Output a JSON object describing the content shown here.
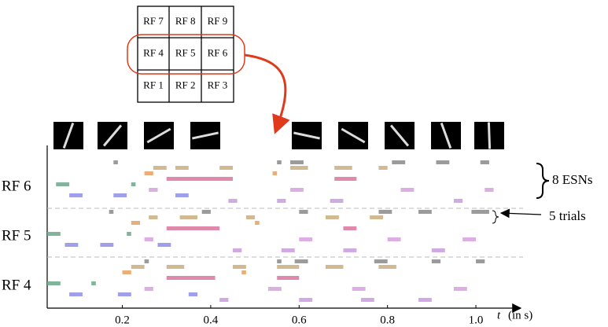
{
  "chart_data": {
    "type": "raster",
    "rf_grid": [
      [
        "RF 7",
        "RF 8",
        "RF 9"
      ],
      [
        "RF 4",
        "RF 5",
        "RF 6"
      ],
      [
        "RF 1",
        "RF 2",
        "RF 3"
      ]
    ],
    "esn_colors": [
      "#8a8a8a",
      "#c9ae7e",
      "#e8a060",
      "#d9749c",
      "#6aa88a",
      "#d6a0df",
      "#8f8fe6",
      "#c89ae0"
    ],
    "sections": [
      {
        "label": "RF 6",
        "bursts": [
          [
            [
              0.18,
              0.19
            ],
            [
              0.55,
              0.56
            ],
            [
              0.58,
              0.61
            ],
            [
              0.81,
              0.84
            ],
            [
              0.91,
              0.94
            ],
            [
              1.01,
              1.03
            ]
          ],
          [
            [
              0.27,
              0.3
            ],
            [
              0.32,
              0.35
            ],
            [
              0.42,
              0.45
            ],
            [
              0.58,
              0.62
            ],
            [
              0.68,
              0.72
            ],
            [
              0.78,
              0.8
            ]
          ],
          [
            [
              0.25,
              0.27
            ],
            [
              0.54,
              0.55
            ]
          ],
          [
            [
              0.3,
              0.45
            ],
            [
              0.68,
              0.73
            ]
          ],
          [
            [
              0.05,
              0.08
            ],
            [
              0.22,
              0.23
            ]
          ],
          [
            [
              0.26,
              0.28
            ],
            [
              0.58,
              0.61
            ],
            [
              0.83,
              0.86
            ],
            [
              1.02,
              1.04
            ]
          ],
          [
            [
              0.08,
              0.11
            ],
            [
              0.18,
              0.21
            ],
            [
              0.32,
              0.35
            ]
          ],
          [
            [
              0.44,
              0.46
            ],
            [
              0.55,
              0.57
            ],
            [
              0.67,
              0.7
            ],
            [
              0.95,
              0.97
            ]
          ]
        ]
      },
      {
        "label": "RF 5",
        "bursts": [
          [
            [
              0.17,
              0.18
            ],
            [
              0.38,
              0.4
            ],
            [
              0.6,
              0.62
            ],
            [
              0.78,
              0.81
            ],
            [
              0.87,
              0.9
            ],
            [
              0.99,
              1.03
            ]
          ],
          [
            [
              0.26,
              0.28
            ],
            [
              0.33,
              0.37
            ],
            [
              0.48,
              0.5
            ],
            [
              0.66,
              0.69
            ],
            [
              0.76,
              0.79
            ]
          ],
          [
            [
              0.22,
              0.24
            ],
            [
              0.5,
              0.51
            ]
          ],
          [
            [
              0.3,
              0.42
            ],
            [
              0.7,
              0.73
            ]
          ],
          [
            [
              0.03,
              0.06
            ],
            [
              0.21,
              0.22
            ]
          ],
          [
            [
              0.25,
              0.27
            ],
            [
              0.6,
              0.63
            ],
            [
              0.8,
              0.83
            ],
            [
              0.97,
              1.0
            ]
          ],
          [
            [
              0.07,
              0.1
            ],
            [
              0.15,
              0.18
            ],
            [
              0.28,
              0.31
            ]
          ],
          [
            [
              0.45,
              0.47
            ],
            [
              0.56,
              0.59
            ],
            [
              0.7,
              0.73
            ],
            [
              0.9,
              0.93
            ]
          ]
        ]
      },
      {
        "label": "RF 4",
        "bursts": [
          [
            [
              0.25,
              0.26
            ],
            [
              0.55,
              0.56
            ],
            [
              0.59,
              0.62
            ],
            [
              0.77,
              0.8
            ],
            [
              0.9,
              0.92
            ],
            [
              1.0,
              1.02
            ]
          ],
          [
            [
              0.22,
              0.25
            ],
            [
              0.3,
              0.34
            ],
            [
              0.45,
              0.48
            ],
            [
              0.55,
              0.6
            ],
            [
              0.66,
              0.7
            ],
            [
              0.78,
              0.82
            ]
          ],
          [
            [
              0.2,
              0.22
            ],
            [
              0.47,
              0.48
            ]
          ],
          [
            [
              0.3,
              0.41
            ],
            [
              0.55,
              0.6
            ]
          ],
          [
            [
              0.03,
              0.06
            ],
            [
              0.13,
              0.14
            ]
          ],
          [
            [
              0.25,
              0.27
            ],
            [
              0.53,
              0.56
            ],
            [
              0.72,
              0.75
            ],
            [
              0.95,
              0.98
            ]
          ],
          [
            [
              0.08,
              0.11
            ],
            [
              0.19,
              0.22
            ],
            [
              0.35,
              0.37
            ]
          ],
          [
            [
              0.42,
              0.44
            ],
            [
              0.6,
              0.63
            ],
            [
              0.74,
              0.77
            ],
            [
              0.87,
              0.9
            ]
          ]
        ]
      }
    ],
    "xlim": [
      0.03,
      1.08
    ],
    "xticks": [
      0.2,
      0.4,
      0.6,
      0.8,
      {
        "value": 1,
        "label": "1.0"
      }
    ],
    "xlabel_var": "t",
    "xlabel_unit": "(in s)",
    "annotations": [
      "8 ESNs",
      "5 trials"
    ]
  }
}
